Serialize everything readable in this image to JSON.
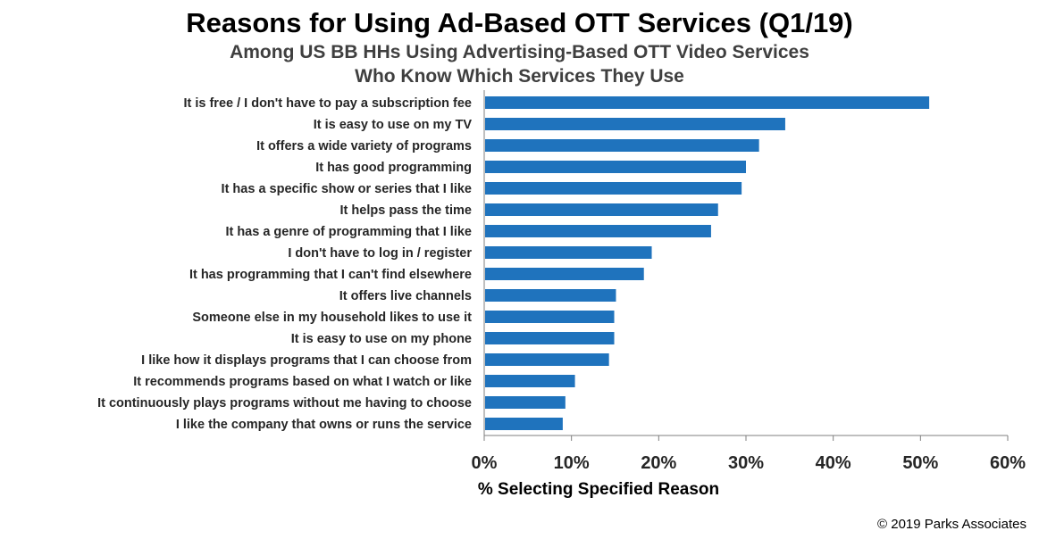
{
  "chart_data": {
    "type": "bar",
    "orientation": "horizontal",
    "title": "Reasons for Using Ad-Based OTT Services (Q1/19)",
    "subtitle_lines": [
      "Among US BB HHs Using Advertising-Based OTT Video Services",
      "Who Know Which Services They Use"
    ],
    "xlabel": "% Selecting Specified Reason",
    "ylabel": "",
    "xlim": [
      0,
      60
    ],
    "xticks": [
      "0%",
      "10%",
      "20%",
      "30%",
      "40%",
      "50%",
      "60%"
    ],
    "categories": [
      "It is free / I don't have to pay a subscription fee",
      "It is easy to use on my TV",
      "It offers a wide variety of programs",
      "It has good programming",
      "It has a specific show or series that I like",
      "It helps pass the time",
      "It has a genre of programming that I like",
      "I don't have to log in / register",
      "It has programming that I can't find elsewhere",
      "It offers live channels",
      "Someone else in my household likes to use it",
      "It is easy to use on my phone",
      "I like how it displays programs that I can choose from",
      "It recommends programs based on what I watch or like",
      "It continuously plays programs without me having to choose",
      "I like the company that owns or runs the service"
    ],
    "values": [
      51,
      34.5,
      31.5,
      30,
      29.5,
      26.8,
      26,
      19.2,
      18.3,
      15.1,
      14.9,
      14.9,
      14.3,
      10.4,
      9.3,
      9
    ],
    "bar_color": "#1f73bd",
    "grid": false
  },
  "footer": {
    "copyright": "© 2019 Parks Associates"
  }
}
